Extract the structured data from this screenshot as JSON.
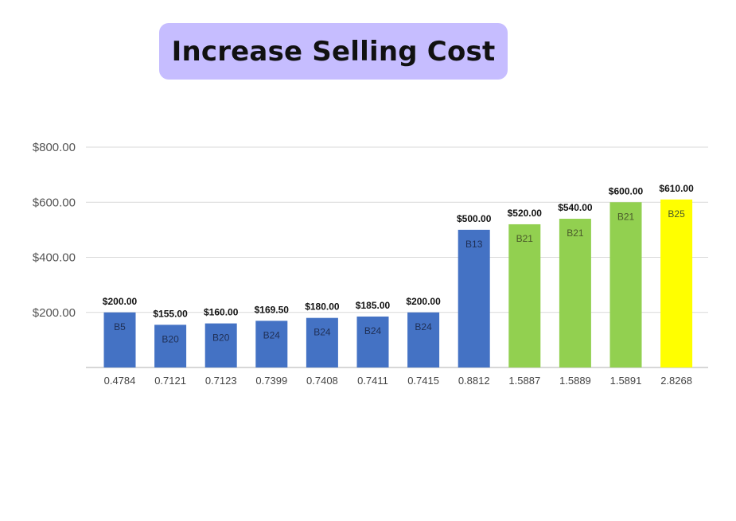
{
  "title": "Increase Selling Cost",
  "colors": {
    "title_bg": "#c6bdff",
    "blue": "#4472c4",
    "green": "#92d050",
    "yellow": "#ffff00",
    "grid": "#d9d9d9"
  },
  "chart_data": {
    "type": "bar",
    "title": "",
    "xlabel": "",
    "ylabel": "",
    "ylim": [
      0,
      800
    ],
    "y_ticks": [
      "$200.00",
      "$400.00",
      "$600.00",
      "$800.00"
    ],
    "y_tick_values": [
      200,
      400,
      600,
      800
    ],
    "grid": true,
    "categories": [
      "0.4784",
      "0.7121",
      "0.7123",
      "0.7399",
      "0.7408",
      "0.7411",
      "0.7415",
      "0.8812",
      "1.5887",
      "1.5889",
      "1.5891",
      "2.8268"
    ],
    "values": [
      200,
      155,
      160,
      169.5,
      180,
      185,
      200,
      500,
      520,
      540,
      600,
      610
    ],
    "value_labels": [
      "$200.00",
      "$155.00",
      "$160.00",
      "$169.50",
      "$180.00",
      "$185.00",
      "$200.00",
      "$500.00",
      "$520.00",
      "$540.00",
      "$600.00",
      "$610.00"
    ],
    "bar_labels": [
      "B5",
      "B20",
      "B20",
      "B24",
      "B24",
      "B24",
      "B24",
      "B13",
      "B21",
      "B21",
      "B21",
      "B25"
    ],
    "bar_colors": [
      "blue",
      "blue",
      "blue",
      "blue",
      "blue",
      "blue",
      "blue",
      "blue",
      "green",
      "green",
      "green",
      "yellow"
    ]
  }
}
